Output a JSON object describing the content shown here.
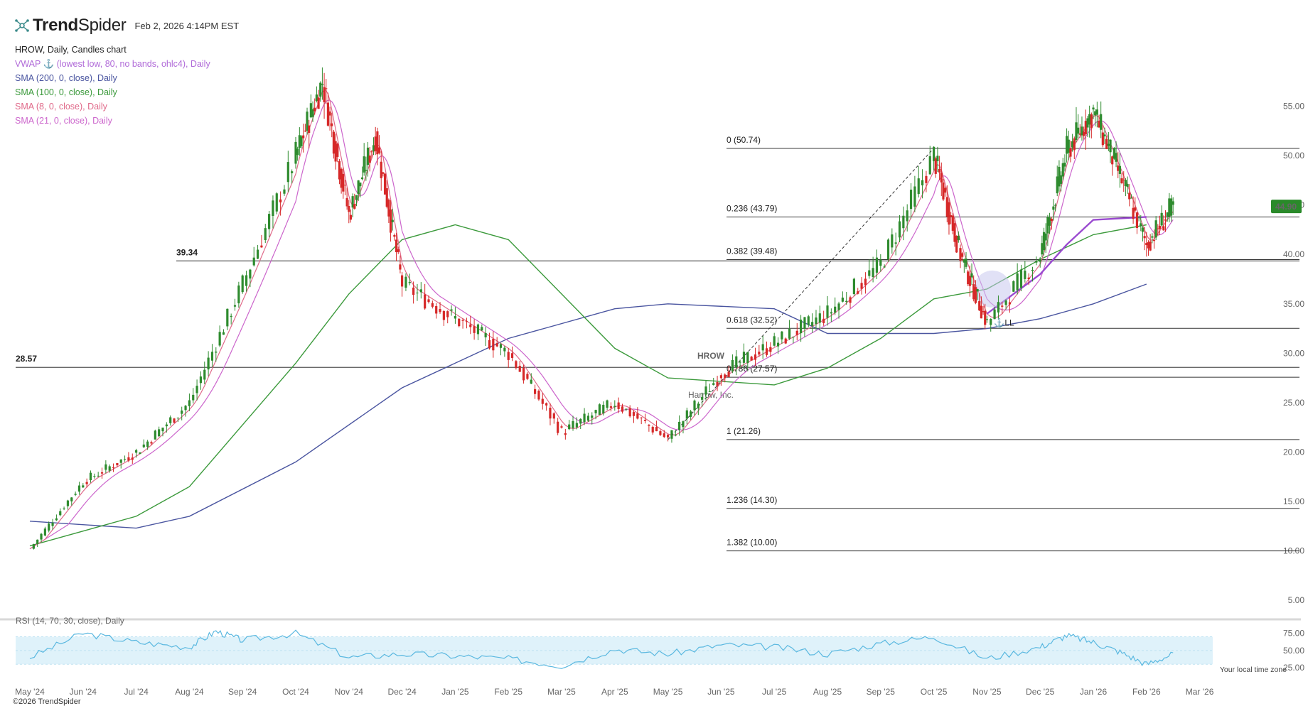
{
  "header": {
    "brand_bold": "Trend",
    "brand_light": "Spider",
    "timestamp": "Feb 2, 2026 4:14PM EST",
    "chart_title": "HROW, Daily, Candles chart"
  },
  "indicators": [
    {
      "label": "VWAP ⚓ (lowest low, 80, no bands, ohlc4), Daily",
      "color": "#b06ad8"
    },
    {
      "label": "SMA (200, 0, close), Daily",
      "color": "#4a55a0"
    },
    {
      "label": "SMA (100, 0, close), Daily",
      "color": "#3c9a3c"
    },
    {
      "label": "SMA (8, 0, close), Daily",
      "color": "#e06a8a"
    },
    {
      "label": "SMA (21, 0, close), Daily",
      "color": "#cc66cc"
    }
  ],
  "watermark": {
    "symbol": "HROW",
    "company": "Harrow, Inc."
  },
  "rsi_label": "RSI (14, 70, 30, close), Daily",
  "timezone_note": "Your local time zone",
  "copyright": "©2026 TrendSpider",
  "price_badge": "44.90",
  "anchor_label": "⚓LL",
  "colors": {
    "up": "#2e8b2e",
    "down": "#d62828",
    "badge": "#2a8a2a",
    "rsi": "#5ab8e0",
    "rsi_band": "#dff2fa"
  },
  "chart_data": {
    "type": "candlestick",
    "symbol": "HROW",
    "y_ticks": [
      "55.00",
      "50.00",
      "45.00",
      "40.00",
      "35.00",
      "30.00",
      "25.00",
      "20.00",
      "15.00",
      "10.00",
      "5.00"
    ],
    "x_ticks": [
      "May '24",
      "Jun '24",
      "Jul '24",
      "Aug '24",
      "Sep '24",
      "Oct '24",
      "Nov '24",
      "Dec '24",
      "Jan '25",
      "Feb '25",
      "Mar '25",
      "Apr '25",
      "May '25",
      "Jun '25",
      "Jul '25",
      "Aug '25",
      "Sep '25",
      "Oct '25",
      "Nov '25",
      "Dec '25",
      "Jan '26",
      "Feb '26",
      "Mar '26"
    ],
    "ylim": [
      3.5,
      60
    ],
    "last_price": 44.9,
    "horizontal_levels": [
      {
        "label": "39.34",
        "value": 39.34
      },
      {
        "label": "28.57",
        "value": 28.57
      }
    ],
    "fibonacci": [
      {
        "label": "0 (50.74)",
        "value": 50.74
      },
      {
        "label": "0.236 (43.79)",
        "value": 43.79
      },
      {
        "label": "0.382 (39.48)",
        "value": 39.48
      },
      {
        "label": "0.618 (32.52)",
        "value": 32.52
      },
      {
        "label": "0.786 (27.57)",
        "value": 27.57
      },
      {
        "label": "1 (21.26)",
        "value": 21.26
      },
      {
        "label": "1.236 (14.30)",
        "value": 14.3
      },
      {
        "label": "1.382 (10.00)",
        "value": 10.0
      }
    ],
    "price_path": [
      [
        "May '24",
        10.2
      ],
      [
        "Jun '24",
        17.0
      ],
      [
        "Jul '24",
        20.0
      ],
      [
        "Aug '24",
        25.0
      ],
      [
        "Sep '24",
        37.0
      ],
      [
        "Oct '24",
        50.0
      ],
      [
        "Oct '24+",
        57.5
      ],
      [
        "Nov '24",
        44.0
      ],
      [
        "Nov '24+",
        52.0
      ],
      [
        "Dec '24",
        37.0
      ],
      [
        "Jan '25",
        33.5
      ],
      [
        "Feb '25",
        30.0
      ],
      [
        "Mar '25",
        22.0
      ],
      [
        "Apr '25",
        25.0
      ],
      [
        "May '25",
        21.3
      ],
      [
        "Jun '25",
        28.0
      ],
      [
        "Jul '25",
        31.0
      ],
      [
        "Aug '25",
        34.0
      ],
      [
        "Sep '25",
        39.0
      ],
      [
        "Oct '25",
        50.0
      ],
      [
        "Oct '25+",
        40.0
      ],
      [
        "Nov '25",
        33.0
      ],
      [
        "Dec '25",
        40.0
      ],
      [
        "Dec '25+",
        50.5
      ],
      [
        "Jan '26",
        54.5
      ],
      [
        "Jan '26+",
        48.0
      ],
      [
        "Feb '26",
        41.0
      ],
      [
        "Feb '26+",
        44.9
      ]
    ],
    "sma_200": [
      [
        "May '24",
        13.0
      ],
      [
        "Jul '24",
        12.3
      ],
      [
        "Aug '24",
        13.5
      ],
      [
        "Oct '24",
        19.0
      ],
      [
        "Dec '24",
        26.5
      ],
      [
        "Feb '25",
        31.5
      ],
      [
        "Apr '25",
        34.5
      ],
      [
        "May '25",
        35.0
      ],
      [
        "Jul '25",
        34.5
      ],
      [
        "Aug '25",
        32.0
      ],
      [
        "Oct '25",
        32.0
      ],
      [
        "Nov '25",
        32.5
      ],
      [
        "Dec '25",
        33.5
      ],
      [
        "Jan '26",
        35.0
      ],
      [
        "Feb '26",
        37.0
      ]
    ],
    "sma_100": [
      [
        "May '24",
        10.5
      ],
      [
        "Jul '24",
        13.5
      ],
      [
        "Aug '24",
        16.5
      ],
      [
        "Oct '24",
        29.0
      ],
      [
        "Nov '24",
        36.0
      ],
      [
        "Dec '24",
        41.5
      ],
      [
        "Jan '25",
        43.0
      ],
      [
        "Feb '25",
        41.5
      ],
      [
        "Mar '25",
        36.0
      ],
      [
        "Apr '25",
        30.5
      ],
      [
        "May '25",
        27.5
      ],
      [
        "Jul '25",
        26.8
      ],
      [
        "Aug '25",
        28.5
      ],
      [
        "Sep '25",
        31.5
      ],
      [
        "Oct '25",
        35.5
      ],
      [
        "Nov '25",
        36.5
      ],
      [
        "Dec '25",
        39.5
      ],
      [
        "Jan '26",
        42.0
      ],
      [
        "Feb '26",
        43.0
      ]
    ],
    "vwap_anchored": [
      [
        "Nov '25",
        34.0
      ],
      [
        "Dec '25",
        38.0
      ],
      [
        "Dec '25+",
        41.0
      ],
      [
        "Jan '26",
        43.5
      ],
      [
        "Feb '26",
        43.8
      ]
    ],
    "rsi": {
      "ylim": [
        20,
        85
      ],
      "ticks": [
        "75.00",
        "50.00",
        "25.00"
      ],
      "upper": 70,
      "lower": 30,
      "path": [
        [
          "May '24",
          40
        ],
        [
          "Jun '24",
          75
        ],
        [
          "Jul '24",
          62
        ],
        [
          "Aug '24",
          55
        ],
        [
          "Aug '24+",
          78
        ],
        [
          "Sep '24",
          65
        ],
        [
          "Oct '24",
          75
        ],
        [
          "Nov '24",
          40
        ],
        [
          "Dec '24",
          45
        ],
        [
          "Jan '25",
          42
        ],
        [
          "Feb '25",
          38
        ],
        [
          "Mar '25",
          28
        ],
        [
          "Apr '25",
          52
        ],
        [
          "May '25",
          45
        ],
        [
          "Jun '25",
          58
        ],
        [
          "Jul '25",
          55
        ],
        [
          "Aug '25",
          45
        ],
        [
          "Sep '25",
          60
        ],
        [
          "Oct '25",
          70
        ],
        [
          "Nov '25",
          38
        ],
        [
          "Dec '25",
          55
        ],
        [
          "Dec '25+",
          72
        ],
        [
          "Jan '26",
          62
        ],
        [
          "Jan '26+",
          48
        ],
        [
          "Feb '26",
          30
        ],
        [
          "Feb '26+",
          45
        ]
      ]
    }
  }
}
